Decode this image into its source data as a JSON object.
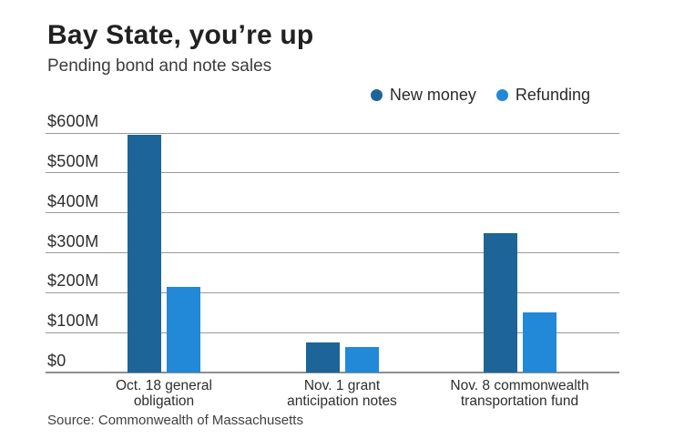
{
  "header": {
    "title": "Bay State, you’re up",
    "subtitle": "Pending bond and note sales"
  },
  "source_line": "Source: Commonwealth of Massachusetts",
  "colors": {
    "new_money": "#1d6498",
    "refunding": "#2189d8",
    "gridline": "#9a9a9a",
    "text": "#2e2e2e"
  },
  "chart_data": {
    "type": "bar",
    "title": "Bay State, you’re up",
    "subtitle": "Pending bond and note sales",
    "categories": [
      "Oct. 18 general obligation",
      "Nov. 1 grant anticipation notes",
      "Nov. 8 commonwealth transportation fund"
    ],
    "category_lines": [
      [
        "Oct. 18 general",
        "obligation"
      ],
      [
        "Nov. 1 grant",
        "anticipation notes"
      ],
      [
        "Nov. 8 commonwealth",
        "transportation fund"
      ]
    ],
    "series": [
      {
        "name": "New money",
        "color": "#1d6498",
        "values": [
          595,
          75,
          350
        ]
      },
      {
        "name": "Refunding",
        "color": "#2189d8",
        "values": [
          215,
          65,
          150
        ]
      }
    ],
    "ylabel": "",
    "xlabel": "",
    "ylim": [
      0,
      600
    ],
    "ytick_step": 100,
    "ytick_labels": [
      "$0",
      "$100M",
      "$200M",
      "$300M",
      "$400M",
      "$500M",
      "$600M"
    ],
    "grid": true,
    "legend_position": "top-right",
    "source": "Source: Commonwealth of Massachusetts"
  }
}
